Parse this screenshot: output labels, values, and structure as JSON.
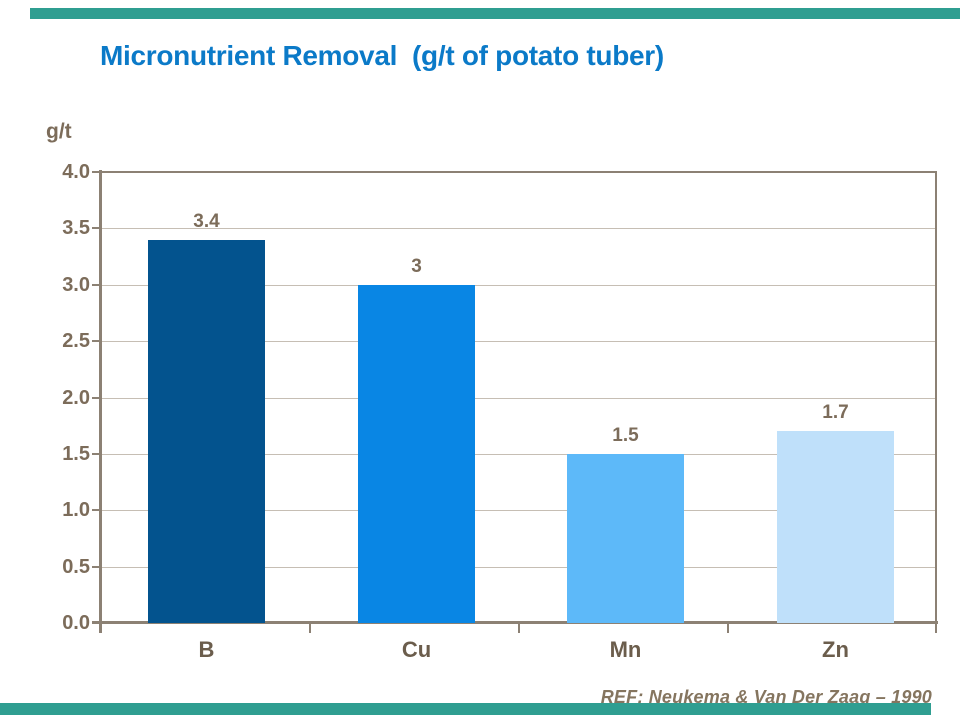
{
  "slide": {
    "title": "Micronutrient Removal  (g/t of potato tuber)",
    "title_color": "#0B7AC8",
    "reference": "REF: Neukema & Van Der Zaag – 1990",
    "reference_color": "#85755F",
    "accent_bar_color": "#2F9E91",
    "background_color": "#FFFFFF"
  },
  "chart_data": {
    "type": "bar",
    "title": "Micronutrient Removal (g/t of potato tuber)",
    "categories": [
      "B",
      "Cu",
      "Mn",
      "Zn"
    ],
    "values": [
      3.4,
      3,
      1.5,
      1.7
    ],
    "value_labels": [
      "3.4",
      "3",
      "1.5",
      "1.7"
    ],
    "bar_colors": [
      "#03538E",
      "#0986E4",
      "#5DB9F9",
      "#BFE0FA"
    ],
    "xlabel": "",
    "ylabel": "g/t",
    "ylim": [
      0,
      4
    ],
    "ytick_step": 0.5,
    "ytick_labels": [
      "4.0",
      "3.5",
      "3.0",
      "2.5",
      "2.0",
      "1.5",
      "1.0",
      "0.5",
      "0.0"
    ],
    "grid": true,
    "legend": "none",
    "axis_color": "#8C8174",
    "gridline_color": "#C6BEB4",
    "tick_text_color": "#7C6C5A",
    "category_text_color": "#6B5D4C",
    "value_text_color": "#7C6C5A"
  }
}
